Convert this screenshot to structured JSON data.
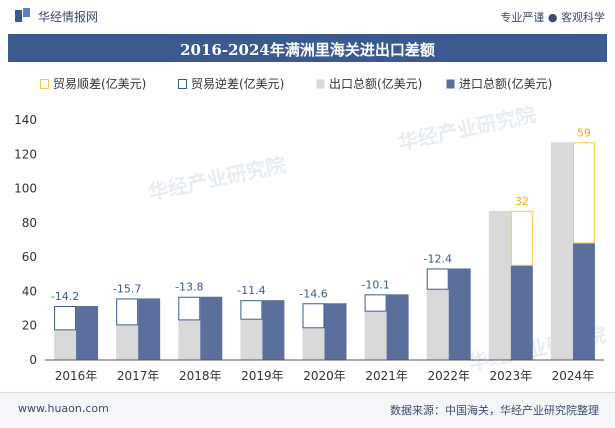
{
  "header": {
    "brand_name": "华经情报网",
    "tagline": "专业严谨 ● 客观科学"
  },
  "footer": {
    "website": "www.huaon.com",
    "source": "数据来源：中国海关，华经产业研究院整理"
  },
  "chart_data": {
    "type": "bar",
    "title": "2016-2024年满洲里海关进出口差额",
    "categories": [
      "2016年",
      "2017年",
      "2018年",
      "2019年",
      "2020年",
      "2021年",
      "2022年",
      "2023年",
      "2024年"
    ],
    "ylim": [
      0,
      140
    ],
    "yticks": [
      0,
      20,
      40,
      60,
      80,
      100,
      120,
      140
    ],
    "legend": [
      {
        "name": "贸易顺差(亿美元)",
        "color": "#f2c94c"
      },
      {
        "name": "贸易逆差(亿美元)",
        "color": "#3b5a90"
      },
      {
        "name": "出口总额(亿美元)",
        "color": "#d9d9d9"
      },
      {
        "name": "进口总额(亿美元)",
        "color": "#5b6f9d"
      }
    ],
    "series": [
      {
        "name": "出口总额(亿美元)",
        "values": [
          17.3,
          20.2,
          23.1,
          23.5,
          18.5,
          28.2,
          41.0,
          87.0,
          127.0
        ]
      },
      {
        "name": "进口总额(亿美元)",
        "values": [
          31.5,
          35.9,
          36.9,
          34.9,
          33.1,
          38.3,
          53.4,
          55.0,
          68.0
        ]
      }
    ],
    "balance": {
      "values": [
        -14.2,
        -15.7,
        -13.8,
        -11.4,
        -14.6,
        -10.1,
        -12.4,
        32,
        59
      ],
      "labels": [
        "-14.2",
        "-15.7",
        "-13.8",
        "-11.4",
        "-14.6",
        "-10.1",
        "-12.4",
        "32",
        "59"
      ]
    },
    "colors": {
      "export": "#d9d9d9",
      "import": "#5b6f9d",
      "surplus": "#f2c94c",
      "deficit": "#3b5a90",
      "surplus_label": "#f2a900",
      "deficit_label": "#3b5a90",
      "axis": "#333333"
    },
    "watermark": "华经产业研究院"
  }
}
